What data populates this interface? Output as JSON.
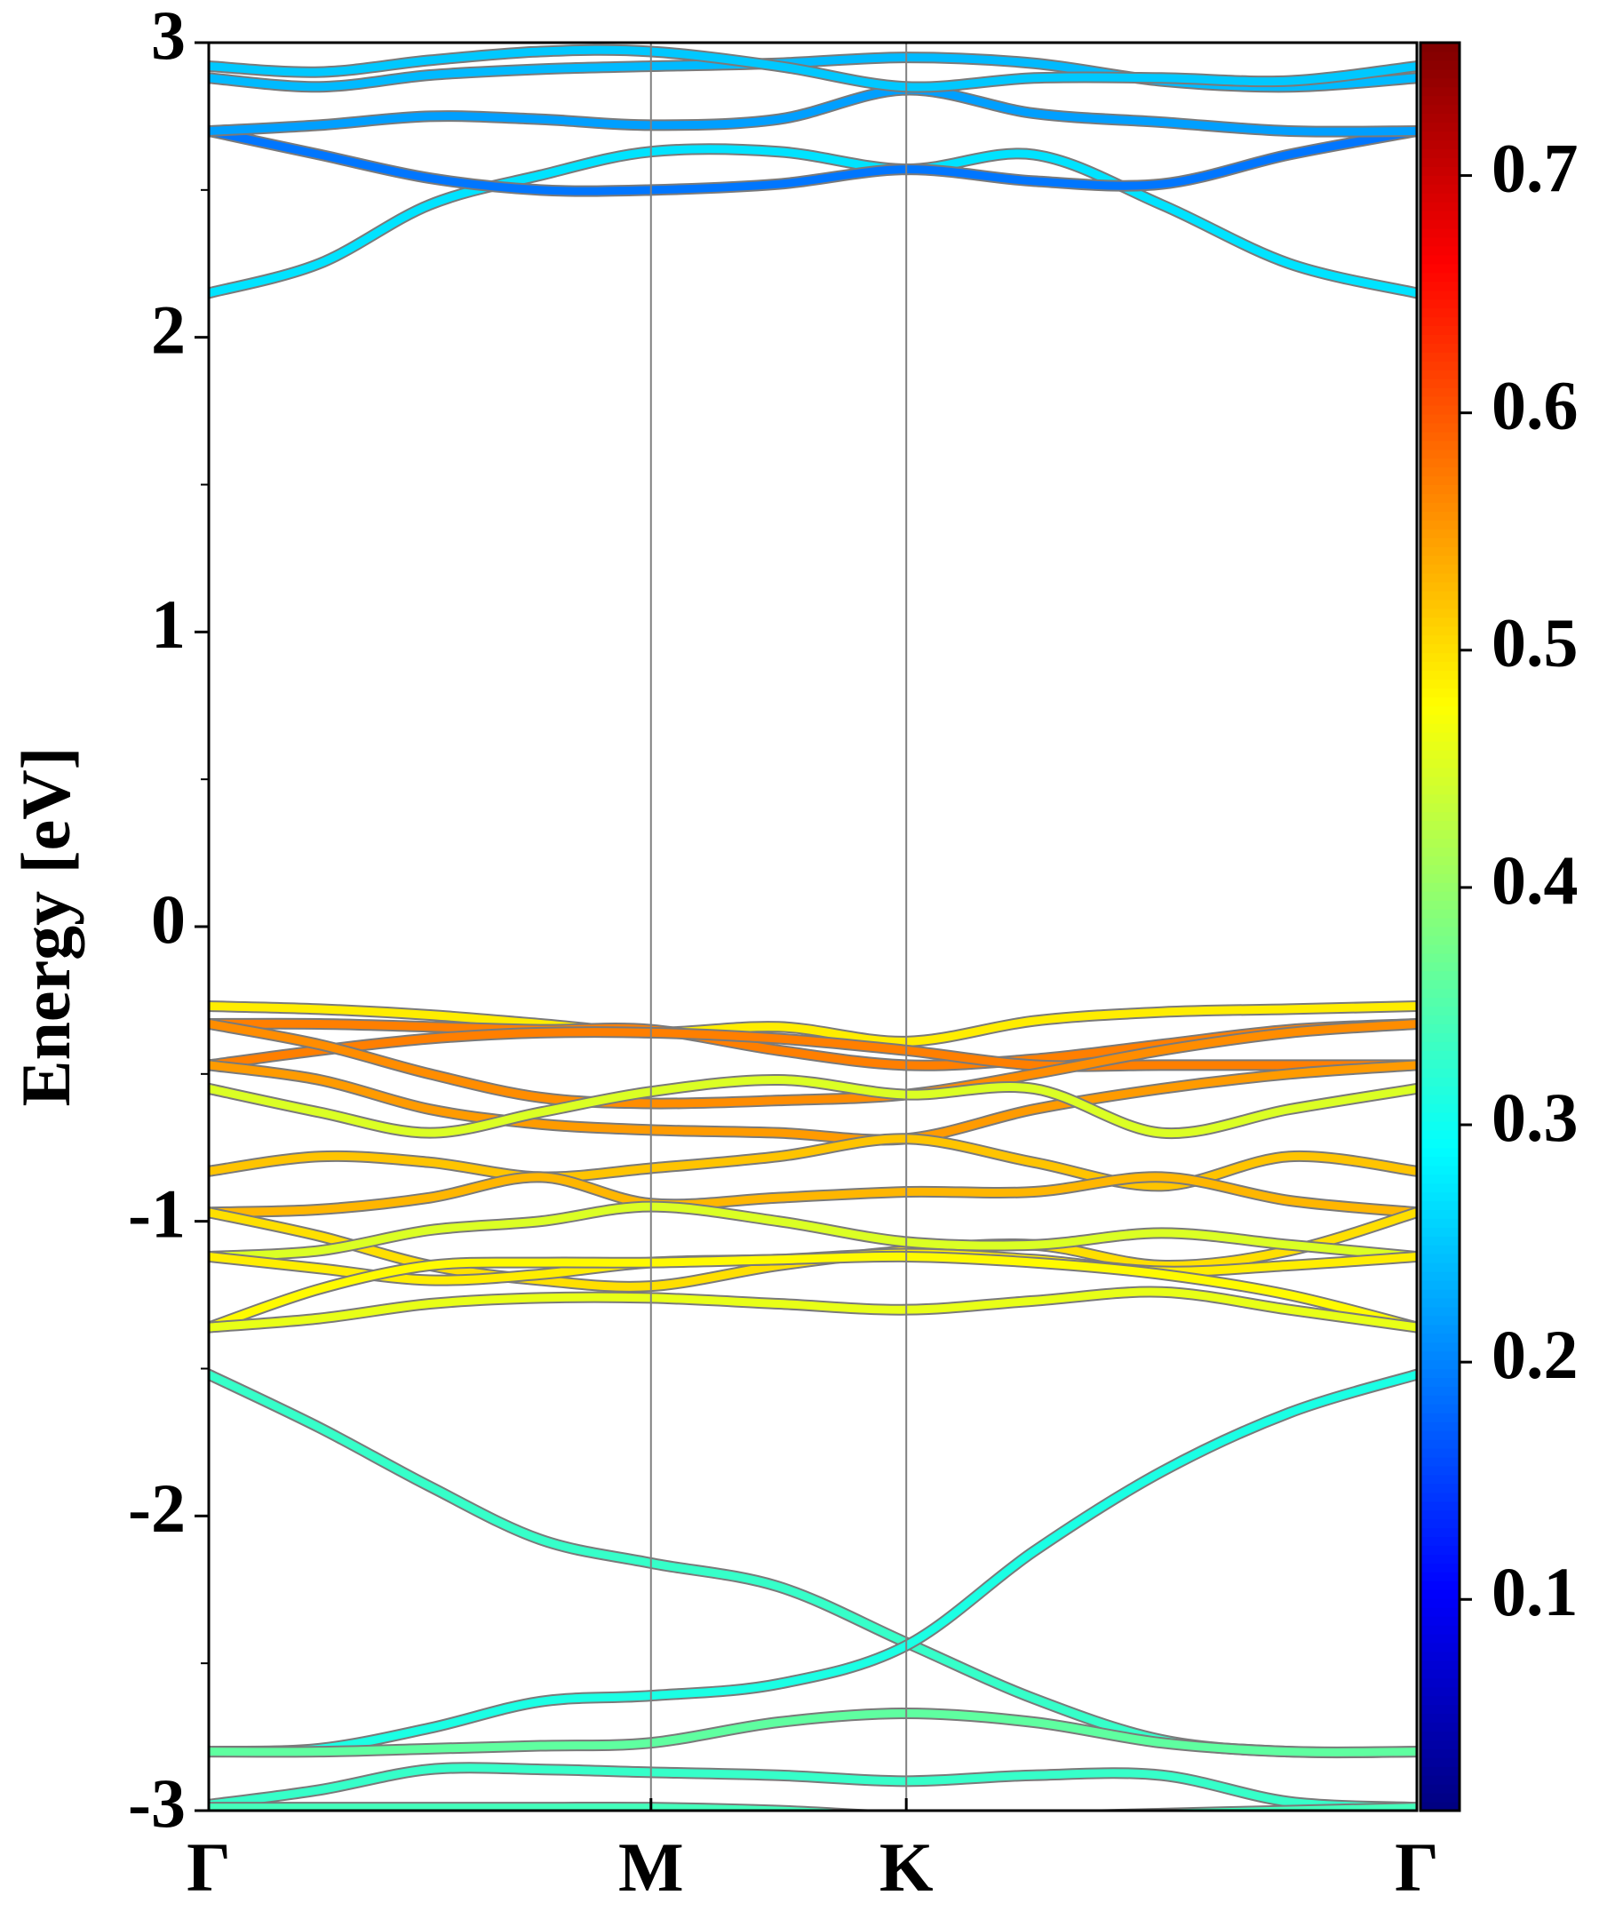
{
  "chart_data": {
    "type": "band",
    "ylabel": "Energy [eV]",
    "x": [
      0,
      0.2165,
      0.433,
      0.6495,
      0.866,
      1.116,
      1.366,
      1.616,
      1.866,
      2.116,
      2.366
    ],
    "xlim": [
      0,
      2.366
    ],
    "xticks": [
      {
        "value": 0,
        "label": "Γ"
      },
      {
        "value": 0.866,
        "label": "M"
      },
      {
        "value": 1.366,
        "label": "K"
      },
      {
        "value": 2.366,
        "label": "Γ"
      }
    ],
    "ylim": [
      -3,
      3
    ],
    "yticks": [
      -3,
      -2,
      -1,
      0,
      1,
      2,
      3
    ],
    "yminorticks": [
      -2.5,
      -1.5,
      -0.5,
      0.5,
      1.5,
      2.5
    ],
    "colormap": "jet",
    "clim": [
      0.011,
      0.756
    ],
    "cticks": [
      0.1,
      0.2,
      0.3,
      0.4,
      0.5,
      0.6,
      0.7
    ],
    "series": [
      {
        "weight": 0.27,
        "values": [
          2.15,
          2.25,
          2.45,
          2.55,
          2.63,
          2.63,
          2.57,
          2.62,
          2.45,
          2.25,
          2.15
        ]
      },
      {
        "weight": 0.19,
        "values": [
          2.7,
          2.62,
          2.54,
          2.5,
          2.5,
          2.52,
          2.57,
          2.53,
          2.52,
          2.62,
          2.7
        ]
      },
      {
        "weight": 0.22,
        "values": [
          2.7,
          2.72,
          2.75,
          2.74,
          2.72,
          2.74,
          2.84,
          2.76,
          2.73,
          2.7,
          2.7
        ]
      },
      {
        "weight": 0.24,
        "values": [
          2.88,
          2.85,
          2.89,
          2.91,
          2.92,
          2.93,
          2.95,
          2.93,
          2.87,
          2.85,
          2.88
        ]
      },
      {
        "weight": 0.25,
        "values": [
          2.92,
          2.9,
          2.94,
          2.97,
          2.97,
          2.92,
          2.85,
          2.88,
          2.88,
          2.87,
          2.92
        ]
      },
      {
        "weight": 0.49,
        "values": [
          -0.27,
          -0.28,
          -0.3,
          -0.33,
          -0.36,
          -0.34,
          -0.39,
          -0.32,
          -0.29,
          -0.28,
          -0.27
        ]
      },
      {
        "weight": 0.57,
        "values": [
          -0.33,
          -0.33,
          -0.34,
          -0.35,
          -0.35,
          -0.42,
          -0.47,
          -0.45,
          -0.4,
          -0.35,
          -0.33
        ]
      },
      {
        "weight": 0.57,
        "values": [
          -0.47,
          -0.42,
          -0.38,
          -0.36,
          -0.36,
          -0.38,
          -0.42,
          -0.47,
          -0.47,
          -0.47,
          -0.47
        ]
      },
      {
        "weight": 0.56,
        "values": [
          -0.33,
          -0.4,
          -0.5,
          -0.58,
          -0.6,
          -0.59,
          -0.57,
          -0.5,
          -0.42,
          -0.36,
          -0.33
        ]
      },
      {
        "weight": 0.55,
        "values": [
          -0.47,
          -0.52,
          -0.62,
          -0.67,
          -0.69,
          -0.7,
          -0.72,
          -0.62,
          -0.55,
          -0.5,
          -0.47
        ]
      },
      {
        "weight": 0.45,
        "values": [
          -0.55,
          -0.63,
          -0.7,
          -0.63,
          -0.56,
          -0.52,
          -0.57,
          -0.55,
          -0.7,
          -0.62,
          -0.55
        ]
      },
      {
        "weight": 0.52,
        "values": [
          -0.83,
          -0.78,
          -0.8,
          -0.85,
          -0.82,
          -0.78,
          -0.72,
          -0.8,
          -0.88,
          -0.78,
          -0.83
        ]
      },
      {
        "weight": 0.53,
        "values": [
          -0.97,
          -0.96,
          -0.92,
          -0.85,
          -0.94,
          -0.92,
          -0.9,
          -0.9,
          -0.85,
          -0.93,
          -0.97
        ]
      },
      {
        "weight": 0.5,
        "values": [
          -0.97,
          -1.05,
          -1.15,
          -1.2,
          -1.22,
          -1.15,
          -1.1,
          -1.08,
          -1.15,
          -1.1,
          -0.97
        ]
      },
      {
        "weight": 0.45,
        "values": [
          -1.12,
          -1.1,
          -1.03,
          -1.0,
          -0.95,
          -1.0,
          -1.07,
          -1.08,
          -1.04,
          -1.08,
          -1.12
        ]
      },
      {
        "weight": 0.49,
        "values": [
          -1.12,
          -1.16,
          -1.2,
          -1.18,
          -1.14,
          -1.13,
          -1.11,
          -1.13,
          -1.17,
          -1.15,
          -1.12
        ]
      },
      {
        "weight": 0.48,
        "values": [
          -1.36,
          -1.23,
          -1.15,
          -1.14,
          -1.14,
          -1.13,
          -1.12,
          -1.14,
          -1.18,
          -1.25,
          -1.36
        ]
      },
      {
        "weight": 0.46,
        "values": [
          -1.36,
          -1.33,
          -1.28,
          -1.26,
          -1.26,
          -1.28,
          -1.3,
          -1.27,
          -1.24,
          -1.3,
          -1.36
        ]
      },
      {
        "weight": 0.33,
        "values": [
          -1.52,
          -1.7,
          -1.9,
          -2.08,
          -2.16,
          -2.24,
          -2.43,
          -2.62,
          -2.76,
          -2.8,
          -2.8
        ]
      },
      {
        "weight": 0.31,
        "values": [
          -2.8,
          -2.79,
          -2.72,
          -2.63,
          -2.61,
          -2.57,
          -2.44,
          -2.12,
          -1.85,
          -1.65,
          -1.52
        ]
      },
      {
        "weight": 0.36,
        "values": [
          -2.8,
          -2.8,
          -2.79,
          -2.78,
          -2.77,
          -2.7,
          -2.67,
          -2.7,
          -2.77,
          -2.8,
          -2.8
        ]
      },
      {
        "weight": 0.33,
        "values": [
          -2.98,
          -2.93,
          -2.86,
          -2.86,
          -2.87,
          -2.88,
          -2.9,
          -2.88,
          -2.88,
          -2.97,
          -2.99
        ]
      },
      {
        "weight": 0.34,
        "values": [
          -2.99,
          -2.99,
          -2.99,
          -2.99,
          -2.99,
          -3.0,
          -3.02,
          -3.02,
          -3.01,
          -3.0,
          -2.99
        ]
      }
    ]
  }
}
